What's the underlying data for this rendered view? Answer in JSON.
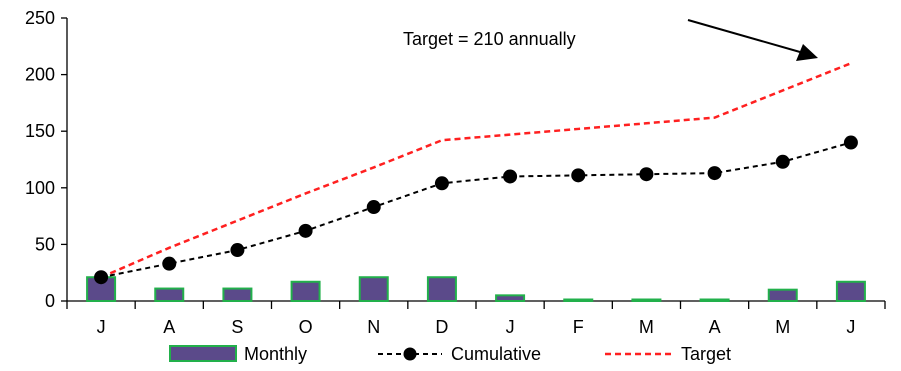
{
  "chart_data": {
    "type": "bar",
    "title": "",
    "xlabel": "",
    "ylabel": "",
    "categories": [
      "J",
      "A",
      "S",
      "O",
      "N",
      "D",
      "J",
      "F",
      "M",
      "A",
      "M",
      "J"
    ],
    "ylim": [
      0,
      250
    ],
    "yticks": [
      0,
      50,
      100,
      150,
      200,
      250
    ],
    "grid": false,
    "legend_position": "bottom",
    "annotation": "Target = 210 annually",
    "series": [
      {
        "name": "Monthly",
        "type": "bar",
        "values": [
          21,
          11,
          11,
          17,
          21,
          21,
          5,
          1,
          0.5,
          1,
          10,
          17
        ],
        "fill": "#5B4A8A",
        "stroke": "#22B04B"
      },
      {
        "name": "Cumulative",
        "type": "line",
        "style": "dashed-with-markers",
        "values": [
          21,
          33,
          45,
          62,
          83,
          104,
          110,
          111,
          112,
          113,
          123,
          140
        ],
        "color": "#000000"
      },
      {
        "name": "Target",
        "type": "line",
        "style": "dashed",
        "values": [
          21,
          47,
          71,
          95,
          118,
          142,
          147,
          152,
          157,
          162,
          186,
          210
        ],
        "color": "#FF2020"
      }
    ]
  }
}
